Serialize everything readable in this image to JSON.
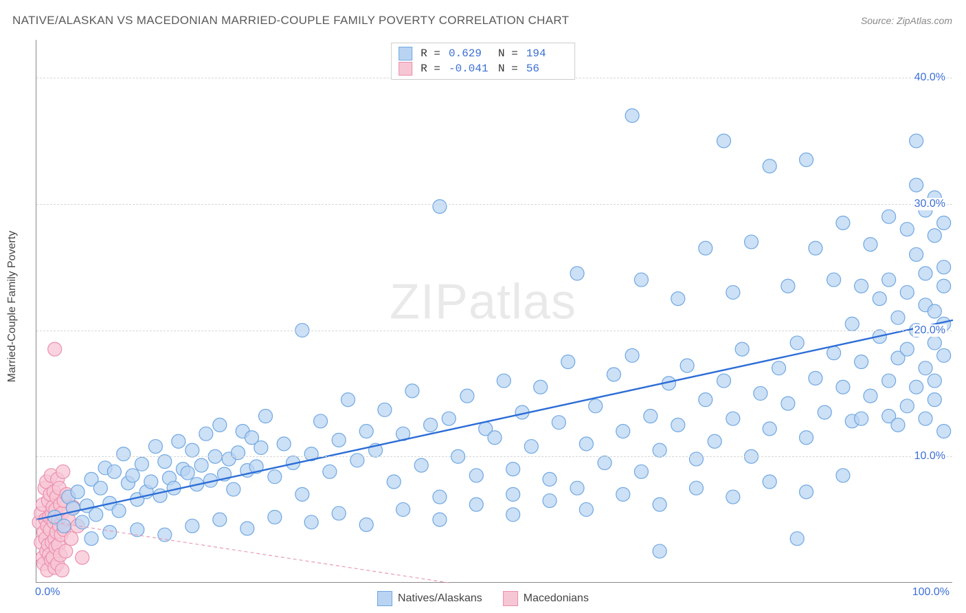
{
  "title": "NATIVE/ALASKAN VS MACEDONIAN MARRIED-COUPLE FAMILY POVERTY CORRELATION CHART",
  "source_prefix": "Source: ",
  "source_name": "ZipAtlas.com",
  "y_axis_title": "Married-Couple Family Poverty",
  "watermark_bold": "ZIP",
  "watermark_thin": "atlas",
  "chart": {
    "type": "scatter",
    "background_color": "#ffffff",
    "grid_color": "#d5d5d5",
    "axis_color": "#888888",
    "tick_label_color": "#3b6fd4",
    "label_fontsize": 16,
    "title_fontsize": 17,
    "marker_radius": 10,
    "marker_stroke_width": 1.2,
    "xlim": [
      0,
      100
    ],
    "ylim": [
      0,
      43
    ],
    "x_ticks": [
      {
        "value": 0,
        "label": "0.0%"
      },
      {
        "value": 100,
        "label": "100.0%"
      }
    ],
    "y_ticks": [
      {
        "value": 10,
        "label": "10.0%"
      },
      {
        "value": 20,
        "label": "20.0%"
      },
      {
        "value": 30,
        "label": "30.0%"
      },
      {
        "value": 40,
        "label": "40.0%"
      }
    ],
    "series": [
      {
        "name": "Natives/Alaskans",
        "fill": "#b9d4f2",
        "stroke": "#6fa7e0",
        "fill_opacity": 0.72,
        "trend": {
          "x1": 0,
          "y1": 5.0,
          "x2": 100,
          "y2": 20.8,
          "stroke": "#2c6dd6",
          "width": 2.4,
          "dash": "none"
        },
        "stats": {
          "R": "0.629",
          "N": "194"
        },
        "points": [
          [
            2,
            5.2
          ],
          [
            3,
            4.5
          ],
          [
            3.5,
            6.8
          ],
          [
            4,
            5.9
          ],
          [
            4.5,
            7.2
          ],
          [
            5,
            4.8
          ],
          [
            5.5,
            6.1
          ],
          [
            6,
            8.2
          ],
          [
            6.5,
            5.4
          ],
          [
            7,
            7.5
          ],
          [
            7.5,
            9.1
          ],
          [
            8,
            6.3
          ],
          [
            8.5,
            8.8
          ],
          [
            9,
            5.7
          ],
          [
            9.5,
            10.2
          ],
          [
            10,
            7.9
          ],
          [
            10.5,
            8.5
          ],
          [
            11,
            6.6
          ],
          [
            11.5,
            9.4
          ],
          [
            12,
            7.2
          ],
          [
            12.5,
            8.0
          ],
          [
            13,
            10.8
          ],
          [
            13.5,
            6.9
          ],
          [
            14,
            9.6
          ],
          [
            14.5,
            8.3
          ],
          [
            15,
            7.5
          ],
          [
            15.5,
            11.2
          ],
          [
            16,
            9.0
          ],
          [
            16.5,
            8.7
          ],
          [
            17,
            10.5
          ],
          [
            17.5,
            7.8
          ],
          [
            18,
            9.3
          ],
          [
            18.5,
            11.8
          ],
          [
            19,
            8.1
          ],
          [
            19.5,
            10.0
          ],
          [
            20,
            12.5
          ],
          [
            20.5,
            8.6
          ],
          [
            21,
            9.8
          ],
          [
            21.5,
            7.4
          ],
          [
            22,
            10.3
          ],
          [
            22.5,
            12.0
          ],
          [
            23,
            8.9
          ],
          [
            23.5,
            11.5
          ],
          [
            24,
            9.2
          ],
          [
            24.5,
            10.7
          ],
          [
            25,
            13.2
          ],
          [
            26,
            8.4
          ],
          [
            27,
            11.0
          ],
          [
            28,
            9.5
          ],
          [
            29,
            20.0
          ],
          [
            29,
            7.0
          ],
          [
            30,
            10.2
          ],
          [
            31,
            12.8
          ],
          [
            32,
            8.8
          ],
          [
            33,
            11.3
          ],
          [
            34,
            14.5
          ],
          [
            35,
            9.7
          ],
          [
            36,
            12.0
          ],
          [
            37,
            10.5
          ],
          [
            38,
            13.7
          ],
          [
            39,
            8.0
          ],
          [
            40,
            11.8
          ],
          [
            41,
            15.2
          ],
          [
            42,
            9.3
          ],
          [
            43,
            12.5
          ],
          [
            44,
            6.8
          ],
          [
            44,
            29.8
          ],
          [
            45,
            13.0
          ],
          [
            46,
            10.0
          ],
          [
            47,
            14.8
          ],
          [
            48,
            8.5
          ],
          [
            49,
            12.2
          ],
          [
            50,
            11.5
          ],
          [
            51,
            16.0
          ],
          [
            52,
            9.0
          ],
          [
            52,
            7.0
          ],
          [
            53,
            13.5
          ],
          [
            54,
            10.8
          ],
          [
            55,
            15.5
          ],
          [
            56,
            8.2
          ],
          [
            57,
            12.7
          ],
          [
            58,
            17.5
          ],
          [
            59,
            7.5
          ],
          [
            59,
            24.5
          ],
          [
            60,
            11.0
          ],
          [
            61,
            14.0
          ],
          [
            62,
            9.5
          ],
          [
            63,
            16.5
          ],
          [
            64,
            12.0
          ],
          [
            65,
            18.0
          ],
          [
            65,
            37.0
          ],
          [
            66,
            8.8
          ],
          [
            66,
            24.0
          ],
          [
            67,
            13.2
          ],
          [
            68,
            10.5
          ],
          [
            68,
            2.5
          ],
          [
            69,
            15.8
          ],
          [
            70,
            12.5
          ],
          [
            70,
            22.5
          ],
          [
            71,
            17.2
          ],
          [
            72,
            9.8
          ],
          [
            73,
            14.5
          ],
          [
            73,
            26.5
          ],
          [
            74,
            11.2
          ],
          [
            75,
            16.0
          ],
          [
            75,
            35.0
          ],
          [
            76,
            13.0
          ],
          [
            76,
            23.0
          ],
          [
            77,
            18.5
          ],
          [
            78,
            10.0
          ],
          [
            78,
            27.0
          ],
          [
            79,
            15.0
          ],
          [
            80,
            12.2
          ],
          [
            80,
            33.0
          ],
          [
            81,
            17.0
          ],
          [
            82,
            14.2
          ],
          [
            82,
            23.5
          ],
          [
            83,
            19.0
          ],
          [
            83,
            3.5
          ],
          [
            84,
            11.5
          ],
          [
            84,
            33.5
          ],
          [
            85,
            16.2
          ],
          [
            85,
            26.5
          ],
          [
            86,
            13.5
          ],
          [
            87,
            18.2
          ],
          [
            87,
            24.0
          ],
          [
            88,
            15.5
          ],
          [
            88,
            28.5
          ],
          [
            89,
            20.5
          ],
          [
            89,
            12.8
          ],
          [
            90,
            17.5
          ],
          [
            90,
            23.5
          ],
          [
            90,
            13.0
          ],
          [
            91,
            14.8
          ],
          [
            91,
            26.8
          ],
          [
            92,
            19.5
          ],
          [
            92,
            22.5
          ],
          [
            93,
            16.0
          ],
          [
            93,
            29.0
          ],
          [
            93,
            13.2
          ],
          [
            93,
            24.0
          ],
          [
            94,
            21.0
          ],
          [
            94,
            17.8
          ],
          [
            94,
            12.5
          ],
          [
            95,
            23.0
          ],
          [
            95,
            18.5
          ],
          [
            95,
            28.0
          ],
          [
            95,
            14.0
          ],
          [
            96,
            20.0
          ],
          [
            96,
            26.0
          ],
          [
            96,
            31.5
          ],
          [
            96,
            15.5
          ],
          [
            96,
            35.0
          ],
          [
            97,
            22.0
          ],
          [
            97,
            17.0
          ],
          [
            97,
            29.5
          ],
          [
            97,
            13.0
          ],
          [
            97,
            24.5
          ],
          [
            98,
            19.0
          ],
          [
            98,
            27.5
          ],
          [
            98,
            21.5
          ],
          [
            98,
            14.5
          ],
          [
            98,
            30.5
          ],
          [
            98,
            16.0
          ],
          [
            99,
            23.5
          ],
          [
            99,
            18.0
          ],
          [
            99,
            28.5
          ],
          [
            99,
            12.0
          ],
          [
            99,
            25.0
          ],
          [
            99,
            20.5
          ],
          [
            6,
            3.5
          ],
          [
            8,
            4.0
          ],
          [
            11,
            4.2
          ],
          [
            14,
            3.8
          ],
          [
            17,
            4.5
          ],
          [
            20,
            5.0
          ],
          [
            23,
            4.3
          ],
          [
            26,
            5.2
          ],
          [
            30,
            4.8
          ],
          [
            33,
            5.5
          ],
          [
            36,
            4.6
          ],
          [
            40,
            5.8
          ],
          [
            44,
            5.0
          ],
          [
            48,
            6.2
          ],
          [
            52,
            5.4
          ],
          [
            56,
            6.5
          ],
          [
            60,
            5.8
          ],
          [
            64,
            7.0
          ],
          [
            68,
            6.2
          ],
          [
            72,
            7.5
          ],
          [
            76,
            6.8
          ],
          [
            80,
            8.0
          ],
          [
            84,
            7.2
          ],
          [
            88,
            8.5
          ]
        ]
      },
      {
        "name": "Macedonians",
        "fill": "#f7c6d4",
        "stroke": "#eb8fae",
        "fill_opacity": 0.75,
        "trend": {
          "x1": 0,
          "y1": 5.0,
          "x2": 45,
          "y2": 0,
          "stroke": "#e89ab5",
          "width": 1.2,
          "dash": "5,4"
        },
        "stats": {
          "R": "-0.041",
          "N": "56"
        },
        "points": [
          [
            0.3,
            4.8
          ],
          [
            0.5,
            3.2
          ],
          [
            0.5,
            5.5
          ],
          [
            0.7,
            2.0
          ],
          [
            0.7,
            6.2
          ],
          [
            0.8,
            4.0
          ],
          [
            0.8,
            1.5
          ],
          [
            0.9,
            7.5
          ],
          [
            1.0,
            3.5
          ],
          [
            1.0,
            5.0
          ],
          [
            1.1,
            2.5
          ],
          [
            1.1,
            8.0
          ],
          [
            1.2,
            4.5
          ],
          [
            1.2,
            1.0
          ],
          [
            1.3,
            6.5
          ],
          [
            1.3,
            3.0
          ],
          [
            1.4,
            5.2
          ],
          [
            1.4,
            2.2
          ],
          [
            1.5,
            7.0
          ],
          [
            1.5,
            4.2
          ],
          [
            1.6,
            1.8
          ],
          [
            1.6,
            8.5
          ],
          [
            1.7,
            5.5
          ],
          [
            1.7,
            3.2
          ],
          [
            1.8,
            6.0
          ],
          [
            1.8,
            2.0
          ],
          [
            1.9,
            4.8
          ],
          [
            1.9,
            7.2
          ],
          [
            2.0,
            3.5
          ],
          [
            2.0,
            1.2
          ],
          [
            2.0,
            18.5
          ],
          [
            2.1,
            5.8
          ],
          [
            2.1,
            2.8
          ],
          [
            2.2,
            6.8
          ],
          [
            2.2,
            4.0
          ],
          [
            2.3,
            1.5
          ],
          [
            2.3,
            8.2
          ],
          [
            2.4,
            5.0
          ],
          [
            2.4,
            3.0
          ],
          [
            2.5,
            7.5
          ],
          [
            2.5,
            4.5
          ],
          [
            2.6,
            2.2
          ],
          [
            2.6,
            6.2
          ],
          [
            2.7,
            3.8
          ],
          [
            2.8,
            5.5
          ],
          [
            2.8,
            1.0
          ],
          [
            2.9,
            8.8
          ],
          [
            3.0,
            4.2
          ],
          [
            3.0,
            6.5
          ],
          [
            3.2,
            2.5
          ],
          [
            3.3,
            7.0
          ],
          [
            3.5,
            5.0
          ],
          [
            3.8,
            3.5
          ],
          [
            4.0,
            6.0
          ],
          [
            4.5,
            4.5
          ],
          [
            5.0,
            2.0
          ]
        ]
      }
    ]
  },
  "stats_legend": {
    "r_label": "R =",
    "n_label": "N ="
  },
  "bottom_legend_labels": [
    "Natives/Alaskans",
    "Macedonians"
  ]
}
